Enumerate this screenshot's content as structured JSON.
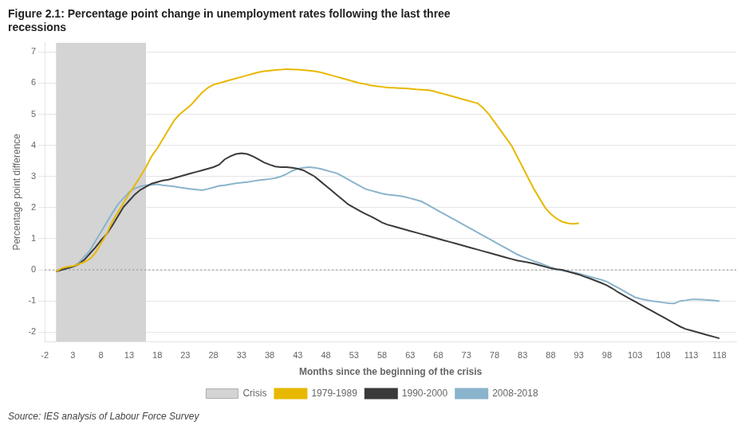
{
  "chart_data": {
    "type": "line",
    "title": [
      "Figure 2.1: Percentage point change in unemployment rates following the last three",
      "recessions"
    ],
    "xlabel": "Months since the beginning of the crisis",
    "ylabel": "Percentage point difference",
    "source": "Source: IES analysis of Labour Force Survey",
    "xlim": [
      -2,
      121
    ],
    "xticks": [
      -2,
      3,
      8,
      13,
      18,
      23,
      28,
      33,
      38,
      43,
      48,
      53,
      58,
      63,
      68,
      73,
      78,
      83,
      88,
      93,
      98,
      103,
      108,
      113,
      118
    ],
    "ylim": [
      -2.3,
      7.3
    ],
    "yticks": [
      -2,
      -1,
      0,
      1,
      2,
      3,
      4,
      5,
      6,
      7
    ],
    "grid": "y",
    "legend": "bottom",
    "shaded_regions": [
      {
        "name": "Crisis",
        "start": 0,
        "end": 16,
        "color": "#d4d4d4"
      }
    ],
    "reference_lines": [
      {
        "value": 0,
        "line_style": "dotted"
      }
    ],
    "series": [
      {
        "name": "1979-1989",
        "color": "#e8b800",
        "x": [
          0,
          1,
          2,
          3,
          4,
          5,
          6,
          7,
          8,
          9,
          10,
          11,
          12,
          13,
          14,
          15,
          16,
          17,
          18,
          19,
          20,
          21,
          22,
          23,
          24,
          25,
          26,
          27,
          28,
          29,
          30,
          31,
          32,
          33,
          34,
          35,
          36,
          37,
          38,
          39,
          40,
          41,
          42,
          43,
          44,
          45,
          46,
          47,
          48,
          49,
          50,
          51,
          52,
          53,
          54,
          55,
          56,
          57,
          58,
          59,
          60,
          61,
          62,
          63,
          64,
          65,
          66,
          67,
          68,
          69,
          70,
          71,
          72,
          73,
          74,
          75,
          76,
          77,
          78,
          79,
          80,
          81,
          82,
          83,
          84,
          85,
          86,
          87,
          88,
          89,
          90,
          91,
          92,
          93
        ],
        "values": [
          -0.05,
          0.05,
          0.1,
          0.12,
          0.18,
          0.25,
          0.35,
          0.55,
          0.85,
          1.15,
          1.55,
          1.85,
          2.15,
          2.45,
          2.72,
          3.0,
          3.3,
          3.65,
          3.9,
          4.2,
          4.5,
          4.8,
          5.0,
          5.15,
          5.3,
          5.5,
          5.7,
          5.85,
          5.95,
          6.0,
          6.05,
          6.1,
          6.15,
          6.2,
          6.25,
          6.3,
          6.35,
          6.38,
          6.4,
          6.42,
          6.43,
          6.45,
          6.44,
          6.43,
          6.42,
          6.4,
          6.38,
          6.35,
          6.3,
          6.25,
          6.2,
          6.15,
          6.1,
          6.05,
          6.0,
          5.97,
          5.93,
          5.9,
          5.88,
          5.86,
          5.85,
          5.84,
          5.83,
          5.82,
          5.8,
          5.79,
          5.78,
          5.75,
          5.7,
          5.65,
          5.6,
          5.55,
          5.5,
          5.45,
          5.4,
          5.35,
          5.2,
          5.0,
          4.75,
          4.5,
          4.25,
          4.0,
          3.65,
          3.3,
          2.95,
          2.6,
          2.3,
          2.0,
          1.8,
          1.65,
          1.55,
          1.5,
          1.48,
          1.5
        ]
      },
      {
        "name": "1990-2000",
        "color": "#3a3a3a",
        "x": [
          0,
          1,
          2,
          3,
          4,
          5,
          6,
          7,
          8,
          9,
          10,
          11,
          12,
          13,
          14,
          15,
          16,
          17,
          18,
          19,
          20,
          21,
          22,
          23,
          24,
          25,
          26,
          27,
          28,
          29,
          30,
          31,
          32,
          33,
          34,
          35,
          36,
          37,
          38,
          39,
          40,
          41,
          42,
          43,
          44,
          45,
          46,
          47,
          48,
          49,
          50,
          51,
          52,
          53,
          54,
          55,
          56,
          57,
          58,
          59,
          60,
          61,
          62,
          63,
          64,
          65,
          66,
          67,
          68,
          69,
          70,
          71,
          72,
          73,
          74,
          75,
          76,
          77,
          78,
          79,
          80,
          81,
          82,
          83,
          84,
          85,
          86,
          87,
          88,
          89,
          90,
          91,
          92,
          93,
          94,
          95,
          96,
          97,
          98,
          99,
          100,
          101,
          102,
          103,
          104,
          105,
          106,
          107,
          108,
          109,
          110,
          111,
          112,
          113,
          114,
          115,
          116,
          117,
          118
        ],
        "values": [
          -0.05,
          0.0,
          0.05,
          0.1,
          0.18,
          0.32,
          0.52,
          0.72,
          0.95,
          1.15,
          1.42,
          1.72,
          2.02,
          2.22,
          2.42,
          2.57,
          2.67,
          2.77,
          2.82,
          2.87,
          2.9,
          2.95,
          3.0,
          3.05,
          3.1,
          3.15,
          3.2,
          3.25,
          3.3,
          3.38,
          3.55,
          3.65,
          3.72,
          3.75,
          3.72,
          3.65,
          3.55,
          3.45,
          3.38,
          3.32,
          3.3,
          3.3,
          3.28,
          3.25,
          3.2,
          3.1,
          3.0,
          2.85,
          2.7,
          2.55,
          2.4,
          2.25,
          2.1,
          2.0,
          1.9,
          1.8,
          1.72,
          1.62,
          1.52,
          1.45,
          1.4,
          1.35,
          1.3,
          1.25,
          1.2,
          1.15,
          1.1,
          1.05,
          1.0,
          0.95,
          0.9,
          0.85,
          0.8,
          0.75,
          0.7,
          0.65,
          0.6,
          0.55,
          0.5,
          0.45,
          0.4,
          0.35,
          0.3,
          0.27,
          0.24,
          0.2,
          0.15,
          0.1,
          0.05,
          0.02,
          0.0,
          -0.05,
          -0.1,
          -0.15,
          -0.22,
          -0.28,
          -0.35,
          -0.42,
          -0.5,
          -0.6,
          -0.72,
          -0.82,
          -0.92,
          -1.02,
          -1.12,
          -1.22,
          -1.32,
          -1.42,
          -1.52,
          -1.62,
          -1.72,
          -1.82,
          -1.9,
          -1.95,
          -2.0,
          -2.05,
          -2.1,
          -2.15,
          -2.2
        ]
      },
      {
        "name": "2008-2018",
        "color": "#8ab4cc",
        "x": [
          0,
          1,
          2,
          3,
          4,
          5,
          6,
          7,
          8,
          9,
          10,
          11,
          12,
          13,
          14,
          15,
          16,
          17,
          18,
          19,
          20,
          21,
          22,
          23,
          24,
          25,
          26,
          27,
          28,
          29,
          30,
          31,
          32,
          33,
          34,
          35,
          36,
          37,
          38,
          39,
          40,
          41,
          42,
          43,
          44,
          45,
          46,
          47,
          48,
          49,
          50,
          51,
          52,
          53,
          54,
          55,
          56,
          57,
          58,
          59,
          60,
          61,
          62,
          63,
          64,
          65,
          66,
          67,
          68,
          69,
          70,
          71,
          72,
          73,
          74,
          75,
          76,
          77,
          78,
          79,
          80,
          81,
          82,
          83,
          84,
          85,
          86,
          87,
          88,
          89,
          90,
          91,
          92,
          93,
          94,
          95,
          96,
          97,
          98,
          99,
          100,
          101,
          102,
          103,
          104,
          105,
          106,
          107,
          108,
          109,
          110,
          111,
          112,
          113,
          114,
          115,
          116,
          117,
          118
        ],
        "values": [
          -0.05,
          0.0,
          0.05,
          0.1,
          0.22,
          0.42,
          0.62,
          0.92,
          1.22,
          1.52,
          1.82,
          2.1,
          2.3,
          2.5,
          2.62,
          2.68,
          2.72,
          2.73,
          2.75,
          2.72,
          2.7,
          2.68,
          2.65,
          2.62,
          2.6,
          2.58,
          2.56,
          2.6,
          2.65,
          2.7,
          2.72,
          2.75,
          2.78,
          2.8,
          2.82,
          2.85,
          2.88,
          2.9,
          2.92,
          2.95,
          3.0,
          3.08,
          3.18,
          3.25,
          3.28,
          3.3,
          3.28,
          3.25,
          3.2,
          3.15,
          3.1,
          3.0,
          2.9,
          2.8,
          2.7,
          2.6,
          2.55,
          2.5,
          2.45,
          2.42,
          2.4,
          2.38,
          2.35,
          2.3,
          2.25,
          2.2,
          2.1,
          2.0,
          1.9,
          1.8,
          1.7,
          1.6,
          1.5,
          1.4,
          1.3,
          1.2,
          1.1,
          1.0,
          0.9,
          0.8,
          0.7,
          0.6,
          0.5,
          0.42,
          0.35,
          0.28,
          0.22,
          0.15,
          0.08,
          0.02,
          -0.02,
          -0.05,
          -0.08,
          -0.12,
          -0.17,
          -0.22,
          -0.27,
          -0.32,
          -0.38,
          -0.48,
          -0.58,
          -0.68,
          -0.78,
          -0.88,
          -0.93,
          -0.97,
          -1.0,
          -1.02,
          -1.05,
          -1.07,
          -1.08,
          -1.0,
          -0.98,
          -0.95,
          -0.95,
          -0.96,
          -0.97,
          -0.98,
          -1.0
        ]
      }
    ]
  }
}
